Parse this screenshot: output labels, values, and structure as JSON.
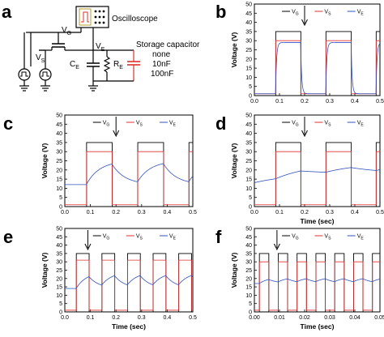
{
  "figure": {
    "circuit": {
      "letter": "a",
      "oscilloscope_label": "Oscilloscope",
      "vg_label": "V",
      "vg_sub": "G",
      "ve_label": "V",
      "ve_sub": "E",
      "vs_label": "V",
      "vs_sub": "S",
      "ce_label": "C",
      "ce_sub": "E",
      "re_label": "R",
      "re_sub": "E",
      "storage_title": "Storage capacitor",
      "storage_options": [
        "none",
        "10nF",
        "100nF"
      ],
      "colors": {
        "cap": "#e03030",
        "wire": "#000000",
        "screen": "#b0a030"
      }
    }
  },
  "chart_data": [
    {
      "panel": "b",
      "type": "line",
      "xlim": [
        0,
        0.5
      ],
      "ylim": [
        0,
        50
      ],
      "xticks": [
        "0.0",
        "0.1",
        "0.2",
        "0.3",
        "0.4",
        "0.5"
      ],
      "yticks": [
        "0",
        "5",
        "10",
        "15",
        "20",
        "25",
        "30",
        "35",
        "40",
        "45",
        "50"
      ],
      "xlabel": "",
      "ylabel": "Voltage (V)",
      "legend": [
        "V",
        "V",
        "V"
      ],
      "legend_subs": [
        "G",
        "S",
        "E"
      ],
      "legend_position": "top-center",
      "period": 0.2,
      "duty": 0.5,
      "phase": 0.085,
      "series": [
        {
          "name": "VG",
          "color": "#000000",
          "high": 35,
          "low": 0
        },
        {
          "name": "VS",
          "color": "#e03030",
          "high": 30,
          "low": 1
        },
        {
          "name": "VE",
          "color": "#3050c0",
          "high": 29,
          "low": 1,
          "tau": 0.004
        }
      ],
      "arrow_x": 0.2
    },
    {
      "panel": "c",
      "type": "line",
      "xlim": [
        0,
        0.5
      ],
      "ylim": [
        0,
        50
      ],
      "xticks": [
        "0.0",
        "0.1",
        "0.2",
        "0.3",
        "0.4",
        "0.5"
      ],
      "yticks": [
        "0",
        "5",
        "10",
        "15",
        "20",
        "25",
        "30",
        "35",
        "40",
        "45",
        "50"
      ],
      "xlabel": "",
      "ylabel": "Voltage (V)",
      "legend": [
        "V",
        "V",
        "V"
      ],
      "legend_subs": [
        "G",
        "S",
        "E"
      ],
      "legend_position": "top-center",
      "period": 0.2,
      "duty": 0.5,
      "phase": 0.085,
      "series": [
        {
          "name": "VG",
          "color": "#000000",
          "high": 35,
          "low": 0
        },
        {
          "name": "VS",
          "color": "#e03030",
          "high": 30,
          "low": 1
        },
        {
          "name": "VE",
          "color": "#3050c0",
          "high": 25,
          "low": 12,
          "tau": 0.05
        }
      ],
      "arrow_x": 0.2
    },
    {
      "panel": "d",
      "type": "line",
      "xlim": [
        0,
        0.5
      ],
      "ylim": [
        0,
        50
      ],
      "xticks": [
        "0.0",
        "0.1",
        "0.2",
        "0.3",
        "0.4",
        "0.5"
      ],
      "yticks": [
        "0",
        "5",
        "10",
        "15",
        "20",
        "25",
        "30",
        "35",
        "40",
        "45",
        "50"
      ],
      "xlabel": "Time (sec)",
      "ylabel": "Voltage (V)",
      "legend": [
        "V",
        "V",
        "V"
      ],
      "legend_subs": [
        "G",
        "S",
        "E"
      ],
      "legend_position": "top-center",
      "period": 0.2,
      "duty": 0.5,
      "phase": 0.085,
      "series": [
        {
          "name": "VG",
          "color": "#000000",
          "high": 35,
          "low": 0
        },
        {
          "name": "VS",
          "color": "#e03030",
          "high": 30,
          "low": 1
        },
        {
          "name": "VE",
          "color": "#3050c0",
          "high": 24,
          "low": 18,
          "tau": 0.15,
          "start": 13
        }
      ],
      "arrow_x": 0.2
    },
    {
      "panel": "e",
      "type": "line",
      "xlim": [
        0,
        0.5
      ],
      "ylim": [
        0,
        50
      ],
      "xticks": [
        "0.0",
        "0.1",
        "0.2",
        "0.3",
        "0.4",
        "0.5"
      ],
      "yticks": [
        "0",
        "5",
        "10",
        "15",
        "20",
        "25",
        "30",
        "35",
        "40",
        "45",
        "50"
      ],
      "xlabel": "Time (sec)",
      "ylabel": "Voltage (V)",
      "legend": [
        "V",
        "V",
        "V"
      ],
      "legend_subs": [
        "G",
        "S",
        "E"
      ],
      "legend_position": "top-center",
      "period": 0.1,
      "duty": 0.5,
      "phase": 0.045,
      "series": [
        {
          "name": "VG",
          "color": "#000000",
          "high": 35,
          "low": 0
        },
        {
          "name": "VS",
          "color": "#e03030",
          "high": 31,
          "low": 1
        },
        {
          "name": "VE",
          "color": "#3050c0",
          "high": 24,
          "low": 14,
          "tau": 0.04
        }
      ],
      "arrow_x": 0.09
    },
    {
      "panel": "f",
      "type": "line",
      "xlim": [
        0,
        0.05
      ],
      "ylim": [
        0,
        50
      ],
      "xticks": [
        "0.00",
        "0.01",
        "0.02",
        "0.03",
        "0.04",
        "0.05"
      ],
      "yticks": [
        "0",
        "5",
        "10",
        "15",
        "20",
        "25",
        "30",
        "35",
        "40",
        "45",
        "50"
      ],
      "xlabel": "Time (sec)",
      "ylabel": "Voltage (V)",
      "legend": [
        "V",
        "V",
        "V"
      ],
      "legend_subs": [
        "G",
        "S",
        "E"
      ],
      "legend_position": "top-center",
      "period": 0.0075,
      "duty": 0.5,
      "phase": 0.002,
      "series": [
        {
          "name": "VG",
          "color": "#000000",
          "high": 35,
          "low": 0
        },
        {
          "name": "VS",
          "color": "#e03030",
          "high": 30,
          "low": 1
        },
        {
          "name": "VE",
          "color": "#3050c0",
          "high": 21,
          "low": 17,
          "tau": 0.004
        }
      ],
      "arrow_x": 0.009
    }
  ]
}
